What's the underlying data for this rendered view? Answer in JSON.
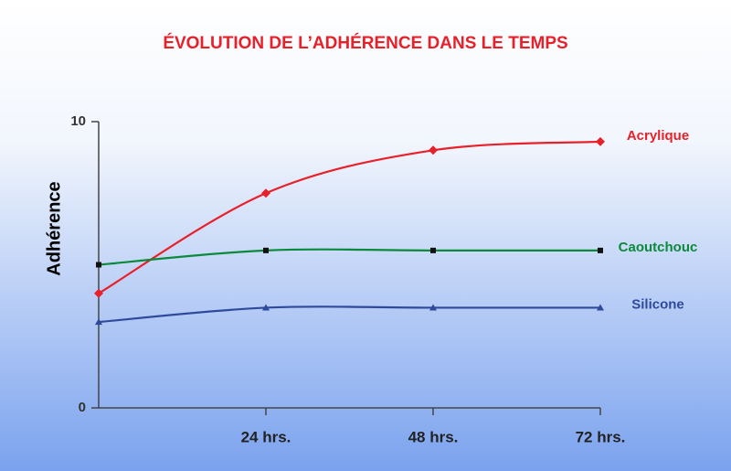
{
  "chart_data": {
    "type": "line",
    "title": "ÉVOLUTION DE L’ADHÉRENCE DANS LE TEMPS",
    "y_label": "Adhérence",
    "x": [
      0,
      24,
      48,
      72
    ],
    "xlim": [
      0,
      72
    ],
    "xticks": [
      {
        "value": 24,
        "label": "24 hrs."
      },
      {
        "value": 48,
        "label": "48 hrs."
      },
      {
        "value": 72,
        "label": "72 hrs."
      }
    ],
    "ylim": [
      0,
      10
    ],
    "yticks": [
      0,
      10
    ],
    "series": [
      {
        "name": "Acrylique",
        "color": "#e8202a",
        "marker": "diamond",
        "values": [
          4.0,
          7.5,
          9.0,
          9.3
        ]
      },
      {
        "name": "Caoutchouc",
        "color": "#0a8a3a",
        "marker": "square",
        "values": [
          5.0,
          5.5,
          5.5,
          5.5
        ]
      },
      {
        "name": "Silicone",
        "color": "#2e4a9a",
        "marker": "triangle",
        "values": [
          3.0,
          3.5,
          3.5,
          3.5
        ]
      }
    ]
  }
}
